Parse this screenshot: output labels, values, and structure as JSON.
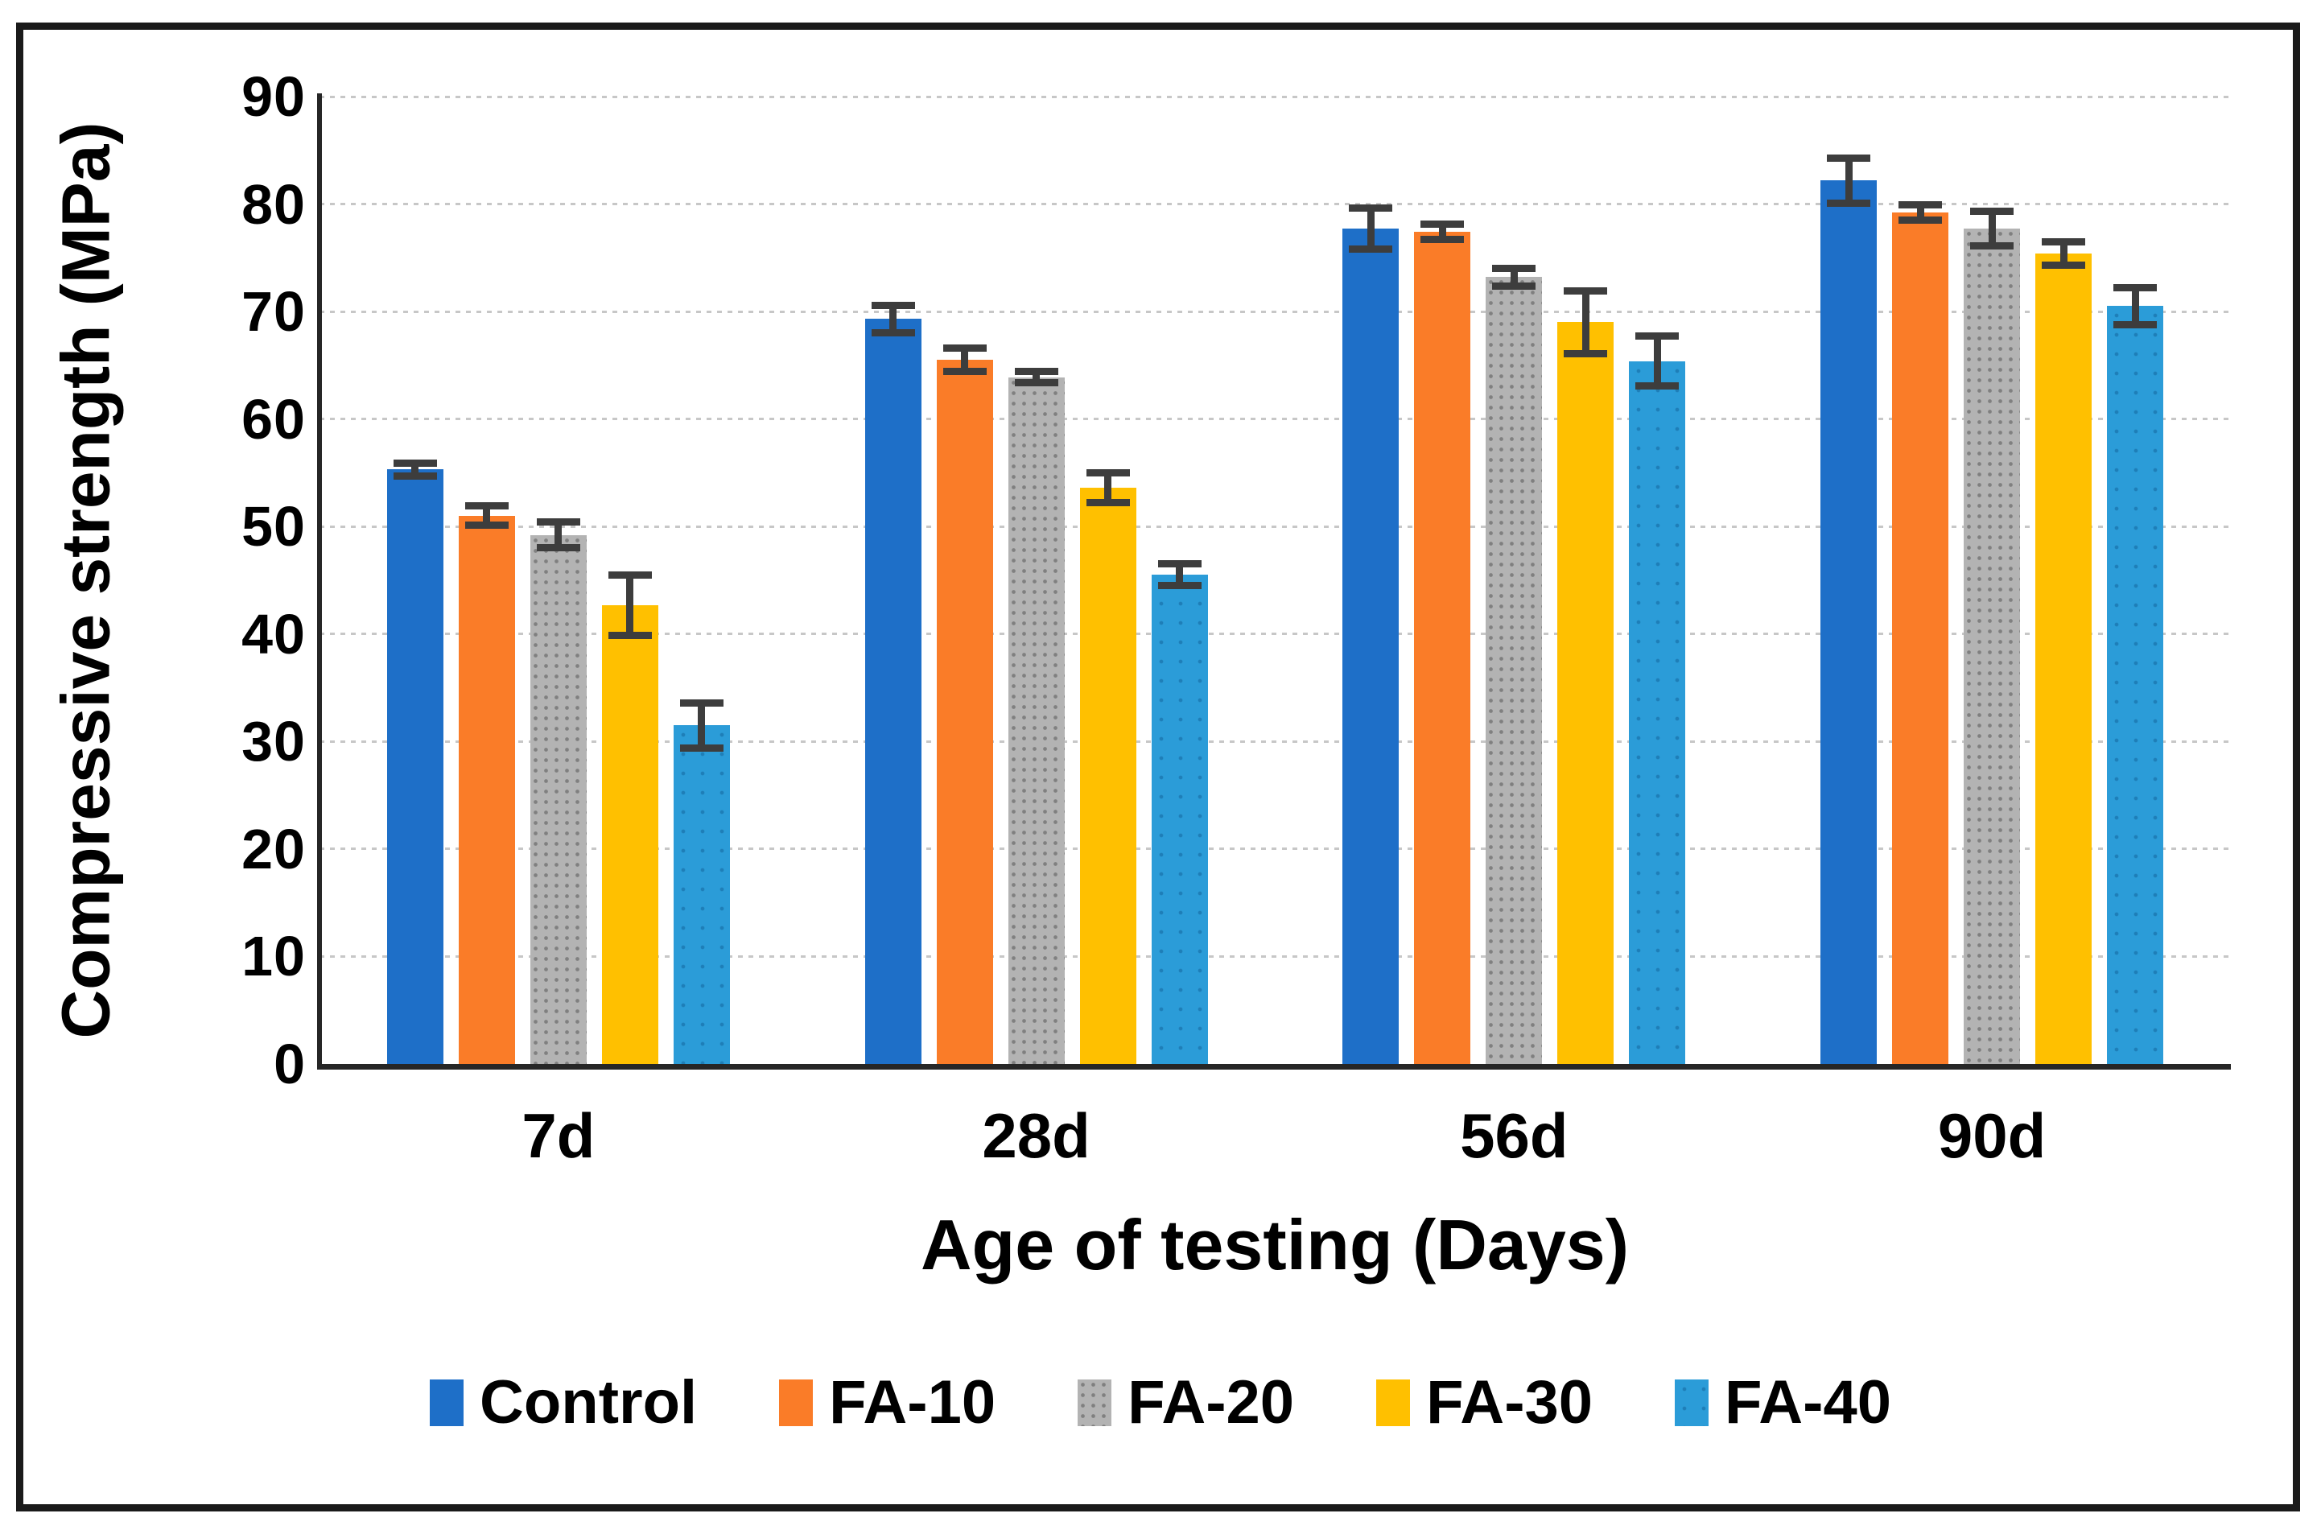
{
  "figure": {
    "background_color": "#ffffff",
    "frame_color": "#1a1a1a"
  },
  "chart_data": {
    "type": "bar",
    "title": "",
    "xlabel": "Age of testing (Days)",
    "ylabel": "Compressive strength (MPa)",
    "ylim": [
      0,
      90
    ],
    "ytick_step": 10,
    "ytick_labels": [
      "0",
      "10",
      "20",
      "30",
      "40",
      "50",
      "60",
      "70",
      "80",
      "90"
    ],
    "grid": "horizontal-dotted",
    "gridline_color": "#c7c7c7",
    "axis_color": "#262626",
    "error_bar_color": "#3d3d3d",
    "legend_position": "bottom",
    "categories": [
      "7d",
      "28d",
      "56d",
      "90d"
    ],
    "series": [
      {
        "name": "Control",
        "color": "#1E6FC8",
        "pattern": "none",
        "values": [
          55.3,
          69.3,
          77.7,
          82.2
        ],
        "errors": [
          0.6,
          1.3,
          1.9,
          2.1
        ]
      },
      {
        "name": "FA-10",
        "color": "#FA7C28",
        "pattern": "none",
        "values": [
          51.0,
          65.5,
          77.4,
          79.2
        ],
        "errors": [
          0.9,
          1.1,
          0.7,
          0.7
        ]
      },
      {
        "name": "FA-20",
        "color": "#B3B3B3",
        "pattern": "dots-gray",
        "values": [
          49.2,
          63.9,
          73.2,
          77.7
        ],
        "errors": [
          1.2,
          0.5,
          0.8,
          1.6
        ]
      },
      {
        "name": "FA-30",
        "color": "#FFC000",
        "pattern": "none",
        "values": [
          42.7,
          53.6,
          69.0,
          75.4
        ],
        "errors": [
          2.8,
          1.4,
          2.9,
          1.1
        ]
      },
      {
        "name": "FA-40",
        "color": "#2B9CD8",
        "pattern": "dots-blue",
        "values": [
          31.5,
          45.5,
          65.4,
          70.5
        ],
        "errors": [
          2.1,
          1.0,
          2.3,
          1.7
        ]
      }
    ]
  }
}
